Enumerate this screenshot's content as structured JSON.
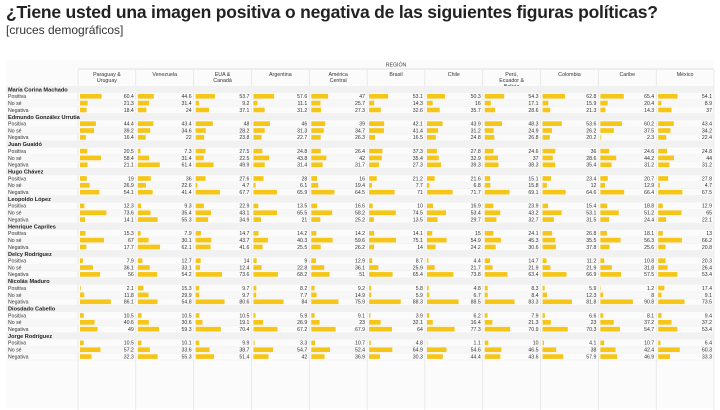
{
  "header": {
    "title": "¿Tiene usted una imagen positiva o negativa de las siguientes figuras políticas?",
    "subtitle": "[cruces demográficos]"
  },
  "chart_data": {
    "type": "table",
    "group_label": "REGIÓN",
    "columns": [
      "Paraguay & Uruguay",
      "Venezuela",
      "EUA & Canadá",
      "Argentina",
      "América Central",
      "Brasil",
      "Chile",
      "Perú, Ecuador & Bolivia",
      "Colombia",
      "Caribe",
      "México"
    ],
    "response_labels": [
      "Positiva",
      "No sé",
      "Negativa"
    ],
    "bar_color": "#f5c518",
    "figures": [
      {
        "name": "María Corina Machado",
        "rows": [
          [
            60.4,
            44.6,
            53.7,
            57.6,
            47,
            53.1,
            50.3,
            54.3,
            62.8,
            65.4,
            54.1
          ],
          [
            21.3,
            31.4,
            9.2,
            11.1,
            25.7,
            14.3,
            16,
            17.1,
            15.9,
            20.4,
            8.9
          ],
          [
            18.4,
            24,
            37.1,
            31.2,
            27.3,
            32.6,
            35.7,
            28.6,
            21.3,
            14.3,
            37
          ]
        ]
      },
      {
        "name": "Edmundo González Urrutia",
        "rows": [
          [
            44.4,
            43.4,
            48,
            46,
            39,
            42.1,
            43.9,
            48.3,
            53.6,
            60.2,
            43.4
          ],
          [
            39.2,
            34.6,
            28.2,
            31.3,
            34.7,
            41.4,
            31.2,
            24.9,
            26.2,
            37.5,
            34.2
          ],
          [
            16.4,
            22,
            23.8,
            22.7,
            26.3,
            16.5,
            24.8,
            26.8,
            20.2,
            2.3,
            22.4
          ]
        ]
      },
      {
        "name": "Juan Guaidó",
        "rows": [
          [
            20.5,
            7.3,
            27.5,
            24.8,
            26.4,
            37.3,
            27.8,
            24.6,
            36,
            24.6,
            24.8
          ],
          [
            58.4,
            31.4,
            22.5,
            43.8,
            42,
            35.4,
            32.9,
            37,
            28.6,
            44.2,
            44
          ],
          [
            21.1,
            61.4,
            49.9,
            31.4,
            31.7,
            27.3,
            39.3,
            38.3,
            35.4,
            31.2,
            31.2
          ]
        ]
      },
      {
        "name": "Hugo Chávez",
        "rows": [
          [
            19,
            36,
            27.6,
            28,
            16,
            21.2,
            21.6,
            15.1,
            23.4,
            20.7,
            27.8
          ],
          [
            26.9,
            22.6,
            4.7,
            6.1,
            19.4,
            7.7,
            6.8,
            15.8,
            12,
            12.9,
            4.7
          ],
          [
            54.1,
            41.4,
            67.7,
            65.9,
            64.5,
            71,
            71.7,
            69.1,
            64.6,
            66.4,
            67.5
          ]
        ]
      },
      {
        "name": "Leopoldo López",
        "rows": [
          [
            12.3,
            9.3,
            22.9,
            13.5,
            16.6,
            10,
            16.9,
            23.9,
            15.4,
            18.8,
            12.9
          ],
          [
            73.6,
            35.4,
            43.1,
            65.5,
            58.2,
            74.5,
            53.4,
            43.2,
            53.1,
            51.2,
            65
          ],
          [
            14.1,
            55.3,
            34.9,
            21,
            25.2,
            13.5,
            29.7,
            32.7,
            31.5,
            24.4,
            22.1
          ]
        ]
      },
      {
        "name": "Henrique Capriles",
        "rows": [
          [
            15.3,
            7.9,
            14.7,
            14.2,
            14.2,
            14.1,
            15,
            24.1,
            26.8,
            18.1,
            13
          ],
          [
            67,
            30.1,
            43.7,
            40.3,
            59.6,
            75.1,
            54.9,
            45.3,
            35.5,
            56.3,
            66.2
          ],
          [
            17.7,
            62.1,
            41.6,
            25.5,
            26.2,
            14,
            24.2,
            30.6,
            37.8,
            25.6,
            20.8
          ]
        ]
      },
      {
        "name": "Delcy Rodríguez",
        "rows": [
          [
            7.9,
            12.7,
            14,
            9,
            12.9,
            8.7,
            4.4,
            14.7,
            11.2,
            10.8,
            20.3
          ],
          [
            36.1,
            33.1,
            12.4,
            22.8,
            36.1,
            25.9,
            21.7,
            21.9,
            21.9,
            31.8,
            26.4
          ],
          [
            56,
            54.2,
            73.6,
            68.2,
            51,
            65.4,
            73.8,
            63.4,
            66.9,
            57.5,
            53.4
          ]
        ]
      },
      {
        "name": "Nicolás Maduro",
        "rows": [
          [
            2.1,
            15.3,
            9.7,
            8.2,
            9.2,
            5.8,
            4.8,
            8.3,
            5.9,
            1.2,
            17.4
          ],
          [
            11.8,
            29.9,
            9.7,
            7.7,
            14.9,
            5.9,
            6.7,
            8.4,
            12.3,
            8,
            9.1
          ],
          [
            86.1,
            54.8,
            80.6,
            84,
            75.9,
            88.3,
            88.5,
            83.3,
            81.8,
            90.8,
            73.5
          ]
        ]
      },
      {
        "name": "Diosdado Cabello",
        "rows": [
          [
            10.5,
            10.5,
            10.5,
            5.9,
            9.1,
            3.9,
            6.2,
            7.9,
            6.6,
            8.1,
            9.4
          ],
          [
            40.6,
            30.6,
            19.1,
            26.9,
            23,
            32.1,
            16.4,
            21.3,
            23,
            37.2,
            37.2
          ],
          [
            49,
            59.3,
            70.4,
            67.2,
            67.9,
            64,
            77.3,
            70.9,
            70.3,
            54.7,
            53.4
          ]
        ]
      },
      {
        "name": "Jorge Rodríguez",
        "rows": [
          [
            10.5,
            10.1,
            9.9,
            3.3,
            10.7,
            4.8,
            1.1,
            10,
            4.1,
            10.7,
            6.4
          ],
          [
            57.2,
            33.6,
            38.7,
            54.7,
            52.4,
            64.9,
            54.6,
            46.5,
            38,
            42.4,
            60.3
          ],
          [
            32.3,
            55.3,
            51.4,
            42,
            36.9,
            30.3,
            44.4,
            43.6,
            57.9,
            46.9,
            33.3
          ]
        ]
      }
    ]
  }
}
